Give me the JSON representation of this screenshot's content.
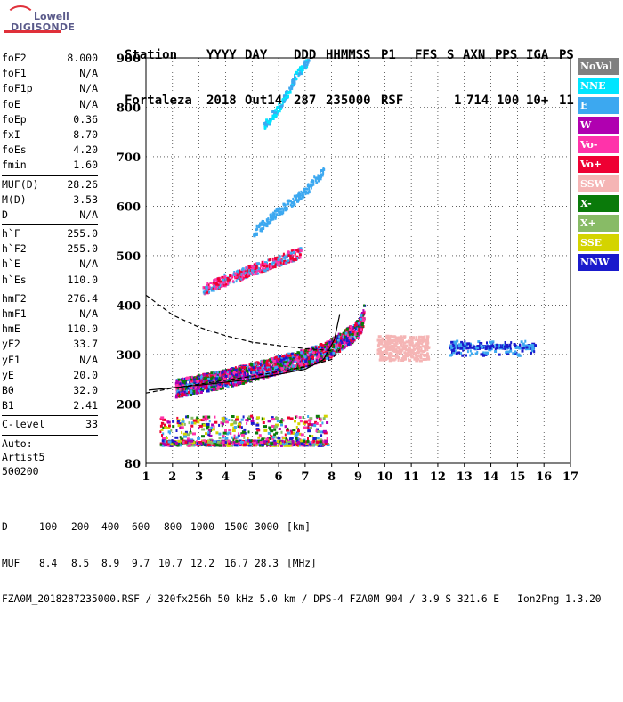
{
  "logo": {
    "line1": "Lowell",
    "line2": "DIGISONDE"
  },
  "header": {
    "labels": [
      "Station",
      "YYYY",
      "DAY",
      "DDD",
      "HHMMSS",
      "P1",
      "FFS",
      "S",
      "AXN",
      "PPS",
      "IGA",
      "PS"
    ],
    "values": [
      "Fortaleza",
      "2018",
      "Out14",
      "287",
      "235000",
      "RSF",
      "",
      "1",
      "714",
      "100",
      "10+",
      "11"
    ]
  },
  "params": {
    "group1": [
      {
        "name": "foF2",
        "value": "8.000"
      },
      {
        "name": "foF1",
        "value": "N/A"
      },
      {
        "name": "foF1p",
        "value": "N/A"
      },
      {
        "name": "foE",
        "value": "N/A"
      },
      {
        "name": "foEp",
        "value": "0.36"
      },
      {
        "name": "fxI",
        "value": "8.70"
      },
      {
        "name": "foEs",
        "value": "4.20"
      },
      {
        "name": "fmin",
        "value": "1.60"
      }
    ],
    "group2": [
      {
        "name": "MUF(D)",
        "value": "28.26"
      },
      {
        "name": "M(D)",
        "value": "3.53"
      },
      {
        "name": "D",
        "value": "N/A"
      }
    ],
    "group3": [
      {
        "name": "h`F",
        "value": "255.0"
      },
      {
        "name": "h`F2",
        "value": "255.0"
      },
      {
        "name": "h`E",
        "value": "N/A"
      },
      {
        "name": "h`Es",
        "value": "110.0"
      }
    ],
    "group4": [
      {
        "name": "hmF2",
        "value": "276.4"
      },
      {
        "name": "hmF1",
        "value": "N/A"
      },
      {
        "name": "hmE",
        "value": "110.0"
      },
      {
        "name": "yF2",
        "value": "33.7"
      },
      {
        "name": "yF1",
        "value": "N/A"
      },
      {
        "name": "yE",
        "value": "20.0"
      },
      {
        "name": "B0",
        "value": "32.0"
      },
      {
        "name": "B1",
        "value": "2.41"
      }
    ],
    "group5": [
      {
        "name": "C-level",
        "value": "33"
      }
    ],
    "auto": [
      "Auto:",
      "Artist5",
      "500200"
    ]
  },
  "legend": [
    {
      "label": "NoVal",
      "color": "#808080"
    },
    {
      "label": "NNE",
      "color": "#00e5ff"
    },
    {
      "label": "E",
      "color": "#3ca8f0"
    },
    {
      "label": "W",
      "color": "#b000b0"
    },
    {
      "label": "Vo-",
      "color": "#ff33aa"
    },
    {
      "label": "Vo+",
      "color": "#ee0033"
    },
    {
      "label": "SSW",
      "color": "#f5b5b5"
    },
    {
      "label": "X-",
      "color": "#0a7a0a"
    },
    {
      "label": "X+",
      "color": "#88bb66"
    },
    {
      "label": "SSE",
      "color": "#d4d400"
    },
    {
      "label": "NNW",
      "color": "#1a1acc"
    }
  ],
  "bottom": {
    "d_label": "D",
    "d_values": [
      "100",
      "200",
      "400",
      "600",
      "800",
      "1000",
      "1500",
      "3000"
    ],
    "d_unit": "[km]",
    "muf_label": "MUF",
    "muf_values": [
      "8.4",
      "8.5",
      "8.9",
      "9.7",
      "10.7",
      "12.2",
      "16.7",
      "28.3"
    ],
    "muf_unit": "[MHz]",
    "footer": "FZA0M_2018287235000.RSF / 320fx256h 50 kHz 5.0 km / DPS-4 FZA0M 904 / 3.9 S 321.6 E   Ion2Png 1.3.20"
  },
  "chart_data": {
    "type": "scatter",
    "title": "",
    "xlabel": "",
    "ylabel": "",
    "xlim": [
      1,
      17
    ],
    "ylim": [
      80,
      900
    ],
    "xticks": [
      1,
      2,
      3,
      4,
      5,
      6,
      7,
      8,
      9,
      10,
      11,
      12,
      13,
      14,
      15,
      16,
      17
    ],
    "yticks": [
      80,
      200,
      300,
      400,
      500,
      600,
      700,
      800,
      900
    ],
    "grid": true,
    "traces": [
      {
        "name": "Es layer",
        "x_range": [
          1.5,
          7.8
        ],
        "h_range": [
          118,
          128
        ],
        "colors": [
          "#ee0033",
          "#ff33aa",
          "#b000b0",
          "#1a1acc",
          "#0a7a0a",
          "#3ca8f0",
          "#88bb66",
          "#d4d400"
        ]
      },
      {
        "name": "F trace",
        "points": [
          [
            2.1,
            228
          ],
          [
            3,
            238
          ],
          [
            4,
            248
          ],
          [
            5,
            262
          ],
          [
            6,
            276
          ],
          [
            7,
            290
          ],
          [
            7.8,
            305
          ],
          [
            8.5,
            330
          ],
          [
            9.0,
            350
          ],
          [
            9.2,
            380
          ]
        ],
        "colors": [
          "#ee0033",
          "#3ca8f0",
          "#ff33aa",
          "#b000b0",
          "#0a7a0a",
          "#1a1acc"
        ]
      },
      {
        "name": "2nd hop",
        "points": [
          [
            3.1,
            430
          ],
          [
            4,
            450
          ],
          [
            5,
            470
          ],
          [
            6,
            490
          ],
          [
            6.8,
            505
          ]
        ],
        "colors": [
          "#ee0033",
          "#ff33aa",
          "#3ca8f0"
        ]
      },
      {
        "name": "3rd hop",
        "points": [
          [
            5,
            545
          ],
          [
            6,
            590
          ],
          [
            7,
            630
          ],
          [
            7.7,
            675
          ]
        ],
        "colors": [
          "#3ca8f0"
        ]
      },
      {
        "name": "4th hop",
        "points": [
          [
            5.4,
            760
          ],
          [
            6,
            800
          ],
          [
            6.6,
            860
          ],
          [
            7.1,
            895
          ]
        ],
        "colors": [
          "#3ca8f0",
          "#00e5ff"
        ]
      },
      {
        "name": "Oblique SSW",
        "x_range": [
          9.7,
          11.6
        ],
        "h_range": [
          290,
          340
        ],
        "colors": [
          "#f5b5b5"
        ]
      },
      {
        "name": "Oblique NNW",
        "x_range": [
          12.4,
          15.6
        ],
        "h_range": [
          300,
          330
        ],
        "colors": [
          "#1a1acc",
          "#3ca8f0"
        ]
      }
    ],
    "profile_curves": [
      {
        "style": "solid",
        "points": [
          [
            1.1,
            228
          ],
          [
            3,
            238
          ],
          [
            5,
            250
          ],
          [
            7,
            270
          ],
          [
            7.7,
            290
          ],
          [
            8.1,
            330
          ],
          [
            8.3,
            380
          ]
        ]
      },
      {
        "style": "dashed",
        "points": [
          [
            1.0,
            420
          ],
          [
            2,
            380
          ],
          [
            3,
            355
          ],
          [
            4,
            338
          ],
          [
            5,
            325
          ],
          [
            6,
            318
          ],
          [
            7,
            312
          ],
          [
            8,
            308
          ]
        ]
      },
      {
        "style": "dashed",
        "points": [
          [
            1.0,
            222
          ],
          [
            2,
            232
          ],
          [
            3,
            240
          ],
          [
            4,
            248
          ],
          [
            5,
            256
          ],
          [
            6,
            265
          ],
          [
            7,
            275
          ],
          [
            8,
            290
          ],
          [
            8.3,
            310
          ]
        ]
      }
    ]
  }
}
